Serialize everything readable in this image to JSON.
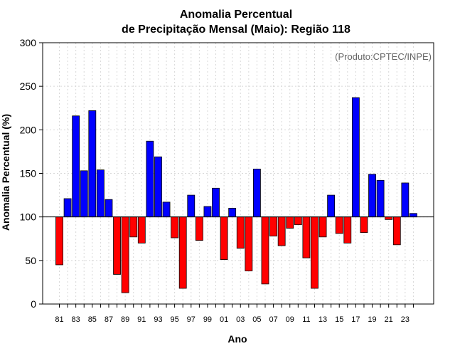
{
  "chart_data": {
    "type": "bar",
    "title_line1": "Anomalia Percentual",
    "title_line2": "de Precipitação Mensal (Maio): Região 118",
    "xlabel": "Ano",
    "ylabel": "Anomalia Percentual (%)",
    "annotation": "(Produto:CPTEC/INPE)",
    "baseline": 100,
    "ylim": [
      0,
      300
    ],
    "yticks": [
      0,
      50,
      100,
      150,
      200,
      250,
      300
    ],
    "grid": true,
    "categories": [
      "81",
      "82",
      "83",
      "84",
      "85",
      "86",
      "87",
      "88",
      "89",
      "90",
      "91",
      "92",
      "93",
      "94",
      "95",
      "96",
      "97",
      "98",
      "99",
      "00",
      "01",
      "02",
      "03",
      "04",
      "05",
      "06",
      "07",
      "08",
      "09",
      "10",
      "11",
      "12",
      "13",
      "14",
      "15",
      "16",
      "17",
      "18",
      "19",
      "20",
      "21",
      "22",
      "23",
      "24"
    ],
    "xtick_labels": [
      "81",
      "83",
      "85",
      "87",
      "89",
      "91",
      "93",
      "95",
      "97",
      "99",
      "01",
      "03",
      "05",
      "07",
      "09",
      "11",
      "13",
      "15",
      "17",
      "19",
      "21",
      "23"
    ],
    "values": [
      45,
      121,
      216,
      153,
      222,
      154,
      120,
      34,
      13,
      77,
      70,
      187,
      169,
      117,
      76,
      18,
      125,
      73,
      112,
      133,
      51,
      110,
      64,
      38,
      155,
      23,
      78,
      67,
      87,
      91,
      53,
      18,
      77,
      125,
      81,
      70,
      237,
      82,
      149,
      142,
      97,
      68,
      139,
      104
    ],
    "colors": {
      "above": "#0000ff",
      "below": "#ff0000",
      "grid": "#d8d8d8"
    }
  }
}
